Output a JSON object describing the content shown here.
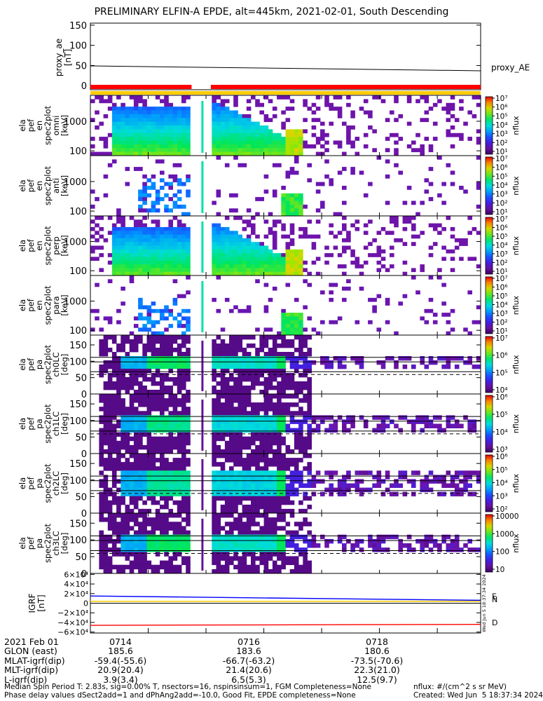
{
  "title": "PRELIMINARY ELFIN-A EPDE, alt=445km, 2021-02-01, South Descending",
  "colors": {
    "red": "#ff0000",
    "yellow": "#ffcc00",
    "blue": "#0000ff",
    "green": "#00cc00"
  },
  "chart_data": [
    {
      "type": "line",
      "panel": "proxy_ae",
      "ylabel_lines": [
        "proxy_ae",
        "[nT]"
      ],
      "yticks": [
        "150",
        "100",
        "50",
        "0"
      ],
      "ylim": [
        -10,
        155
      ],
      "series": [
        {
          "name": "proxy_AE",
          "x": [
            "0713:00",
            "0719:45"
          ],
          "y": [
            49,
            37
          ]
        }
      ],
      "bar_segments": [
        {
          "color": "red",
          "from": "0713:00",
          "to": "0714:45"
        },
        {
          "color": "red",
          "from": "0715:05",
          "to": "0719:45"
        }
      ]
    },
    {
      "type": "heatmap",
      "panel": "pef_en_spec2plot_omni",
      "ylabel_lines": [
        "ela",
        "pef",
        "en",
        "spec2plot",
        "omni",
        "[keV]"
      ],
      "yticks": [
        "1000",
        "100"
      ],
      "colorbar": {
        "label": "nflux",
        "ticks": [
          "10⁷",
          "10⁶",
          "10⁵",
          "10⁴",
          "10³",
          "10²",
          "10¹"
        ]
      }
    },
    {
      "type": "heatmap",
      "panel": "pef_en_spec2plot_anti",
      "ylabel_lines": [
        "ela",
        "pef",
        "en",
        "spec2plot",
        "anti",
        "[keV]"
      ],
      "yticks": [
        "1000",
        "100"
      ],
      "colorbar": {
        "label": "nflux",
        "ticks": [
          "10⁷",
          "10⁶",
          "10⁵",
          "10⁴",
          "10³",
          "10²",
          "10¹"
        ]
      }
    },
    {
      "type": "heatmap",
      "panel": "pef_en_spec2plot_perp",
      "ylabel_lines": [
        "ela",
        "pef",
        "en",
        "spec2plot",
        "perp",
        "[keV]"
      ],
      "yticks": [
        "1000",
        "100"
      ],
      "colorbar": {
        "label": "nflux",
        "ticks": [
          "10⁷",
          "10⁶",
          "10⁵",
          "10⁴",
          "10³",
          "10²",
          "10¹"
        ]
      }
    },
    {
      "type": "heatmap",
      "panel": "pef_en_spec2plot_para",
      "ylabel_lines": [
        "ela",
        "pef",
        "en",
        "spec2plot",
        "para",
        "[keV]"
      ],
      "yticks": [
        "1000",
        "100"
      ],
      "colorbar": {
        "label": "nflux",
        "ticks": [
          "10⁷",
          "10⁶",
          "10⁵",
          "10⁴",
          "10³",
          "10²",
          "10¹"
        ]
      }
    },
    {
      "type": "heatmap",
      "panel": "pef_pa_spec2plot_ch0LC",
      "ylabel_lines": [
        "ela",
        "pef",
        "pa",
        "spec2plot",
        "ch0LC",
        "[deg]"
      ],
      "yticks": [
        "150",
        "100",
        "50",
        "0"
      ],
      "ylim": [
        0,
        180
      ],
      "colorbar": {
        "label": "nflux",
        "ticks": [
          "10⁷",
          "10⁶",
          "10⁵",
          "10⁴"
        ]
      }
    },
    {
      "type": "heatmap",
      "panel": "pef_pa_spec2plot_ch1LC",
      "ylabel_lines": [
        "ela",
        "pef",
        "pa",
        "spec2plot",
        "ch1LC",
        "[deg]"
      ],
      "yticks": [
        "150",
        "100",
        "50",
        "0"
      ],
      "ylim": [
        0,
        180
      ],
      "colorbar": {
        "label": "nflux",
        "ticks": [
          "10⁶",
          "10⁵",
          "10⁴",
          "10³"
        ]
      }
    },
    {
      "type": "heatmap",
      "panel": "pef_pa_spec2plot_ch2LC",
      "ylabel_lines": [
        "ela",
        "pef",
        "pa",
        "spec2plot",
        "ch2LC",
        "[deg]"
      ],
      "yticks": [
        "150",
        "100",
        "50",
        "0"
      ],
      "ylim": [
        0,
        180
      ],
      "colorbar": {
        "label": "nflux",
        "ticks": [
          "10⁶",
          "10⁵",
          "10⁴",
          "10³",
          "10²"
        ]
      }
    },
    {
      "type": "heatmap",
      "panel": "pef_pa_spec2plot_ch3LC",
      "ylabel_lines": [
        "ela",
        "pef",
        "pa",
        "spec2plot",
        "ch3LC",
        "[deg]"
      ],
      "yticks": [
        "150",
        "100",
        "50",
        "0"
      ],
      "ylim": [
        0,
        180
      ],
      "colorbar": {
        "label": "nflux",
        "ticks": [
          "10000",
          "1000",
          "100",
          "10"
        ]
      }
    },
    {
      "type": "line",
      "panel": "IGRF",
      "ylabel_lines": [
        "IGRF",
        "[nT]"
      ],
      "yticks": [
        "6×10⁴",
        "4×10⁴",
        "2×10⁴",
        "0",
        "−2×10⁴",
        "−4×10⁴",
        "−6×10⁴"
      ],
      "ylim": [
        -62000,
        62000
      ],
      "series": [
        {
          "name": "E",
          "color": "yellow",
          "x": [
            "0713:00",
            "0719:45"
          ],
          "y": [
            4000,
            4000
          ]
        },
        {
          "name": "N",
          "color": "blue",
          "x": [
            "0713:00",
            "0719:45"
          ],
          "y": [
            15000,
            6000
          ]
        },
        {
          "name": "D",
          "color": "red",
          "x": [
            "0713:00",
            "0719:45"
          ],
          "y": [
            -46000,
            -44000
          ]
        }
      ],
      "side_stamp": "Wed Jun  5 18:37:34 2024"
    }
  ],
  "xaxis": {
    "row_labels": [
      "2021 Feb 01",
      "GLON (east)",
      "MLAT-igrf(dip)",
      "MLT-igrf(dip)",
      "L-igrf(dip)"
    ],
    "ticks": [
      {
        "time": "0714",
        "values": [
          "185.6",
          "-59.4(-55.6)",
          "20.9(20.4)",
          "3.9(3.4)"
        ]
      },
      {
        "time": "0716",
        "values": [
          "183.6",
          "-66.7(-63.2)",
          "21.4(20.6)",
          "6.5(5.3)"
        ]
      },
      {
        "time": "0718",
        "values": [
          "180.6",
          "-73.5(-70.6)",
          "22.3(21.0)",
          "12.5(9.7)"
        ]
      }
    ]
  },
  "footer": {
    "left_line1": "Median Spin Period T: 2.83s, sig=0.00% T, nsectors=16, nspinsinsum=1, FGM Completeness=None",
    "left_line2": "Phase delay values dSect2add=1 and dPhAng2add=-10.0, Good Fit, EPDE completeness=None",
    "right_line1": "nflux: #/(cm^2 s sr MeV)",
    "right_line2": "Created: Wed Jun  5 18:37:34 2024"
  }
}
